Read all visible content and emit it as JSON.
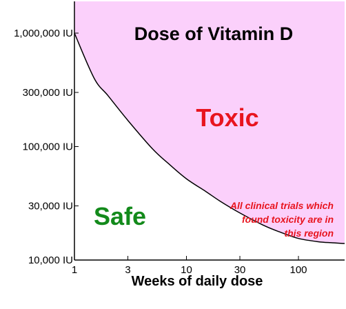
{
  "chart_data": {
    "type": "area",
    "title": "Dose of Vitamin D",
    "xlabel": "Weeks of daily dose",
    "ylabel": "",
    "x_scale": "log",
    "y_scale": "log",
    "xlim": [
      1,
      300
    ],
    "ylim": [
      10000,
      1500000
    ],
    "x_ticks": [
      {
        "value": 1,
        "label": "1"
      },
      {
        "value": 3,
        "label": "3"
      },
      {
        "value": 10,
        "label": "10"
      },
      {
        "value": 30,
        "label": "30"
      },
      {
        "value": 100,
        "label": "100"
      }
    ],
    "y_ticks": [
      {
        "value": 10000,
        "label": "10,000 IU"
      },
      {
        "value": 30000,
        "label": "30,000 IU"
      },
      {
        "value": 100000,
        "label": "100,000 IU"
      },
      {
        "value": 300000,
        "label": "300,000 IU"
      },
      {
        "value": 1000000,
        "label": "1,000,000 IU"
      }
    ],
    "boundary": {
      "x": [
        1,
        1.5,
        2,
        3,
        5,
        7,
        10,
        15,
        20,
        30,
        50,
        70,
        100,
        150,
        200,
        250
      ],
      "y": [
        1000000,
        400000,
        280000,
        170000,
        95000,
        70000,
        52000,
        40000,
        33000,
        26000,
        20000,
        17500,
        15500,
        14500,
        14200,
        14000
      ]
    },
    "regions": {
      "toxic": "Toxic",
      "safe": "Safe"
    },
    "annotations": [
      "All clinical trials which",
      "found toxicity are in",
      "this region"
    ],
    "grid": false,
    "legend": "none"
  },
  "colors": {
    "toxic_fill": "#fbd0fb",
    "boundary": "#000000",
    "toxic_text": "#e8141e",
    "safe_text": "#138a1b",
    "note_text": "#e8141e",
    "axis": "#000000"
  }
}
